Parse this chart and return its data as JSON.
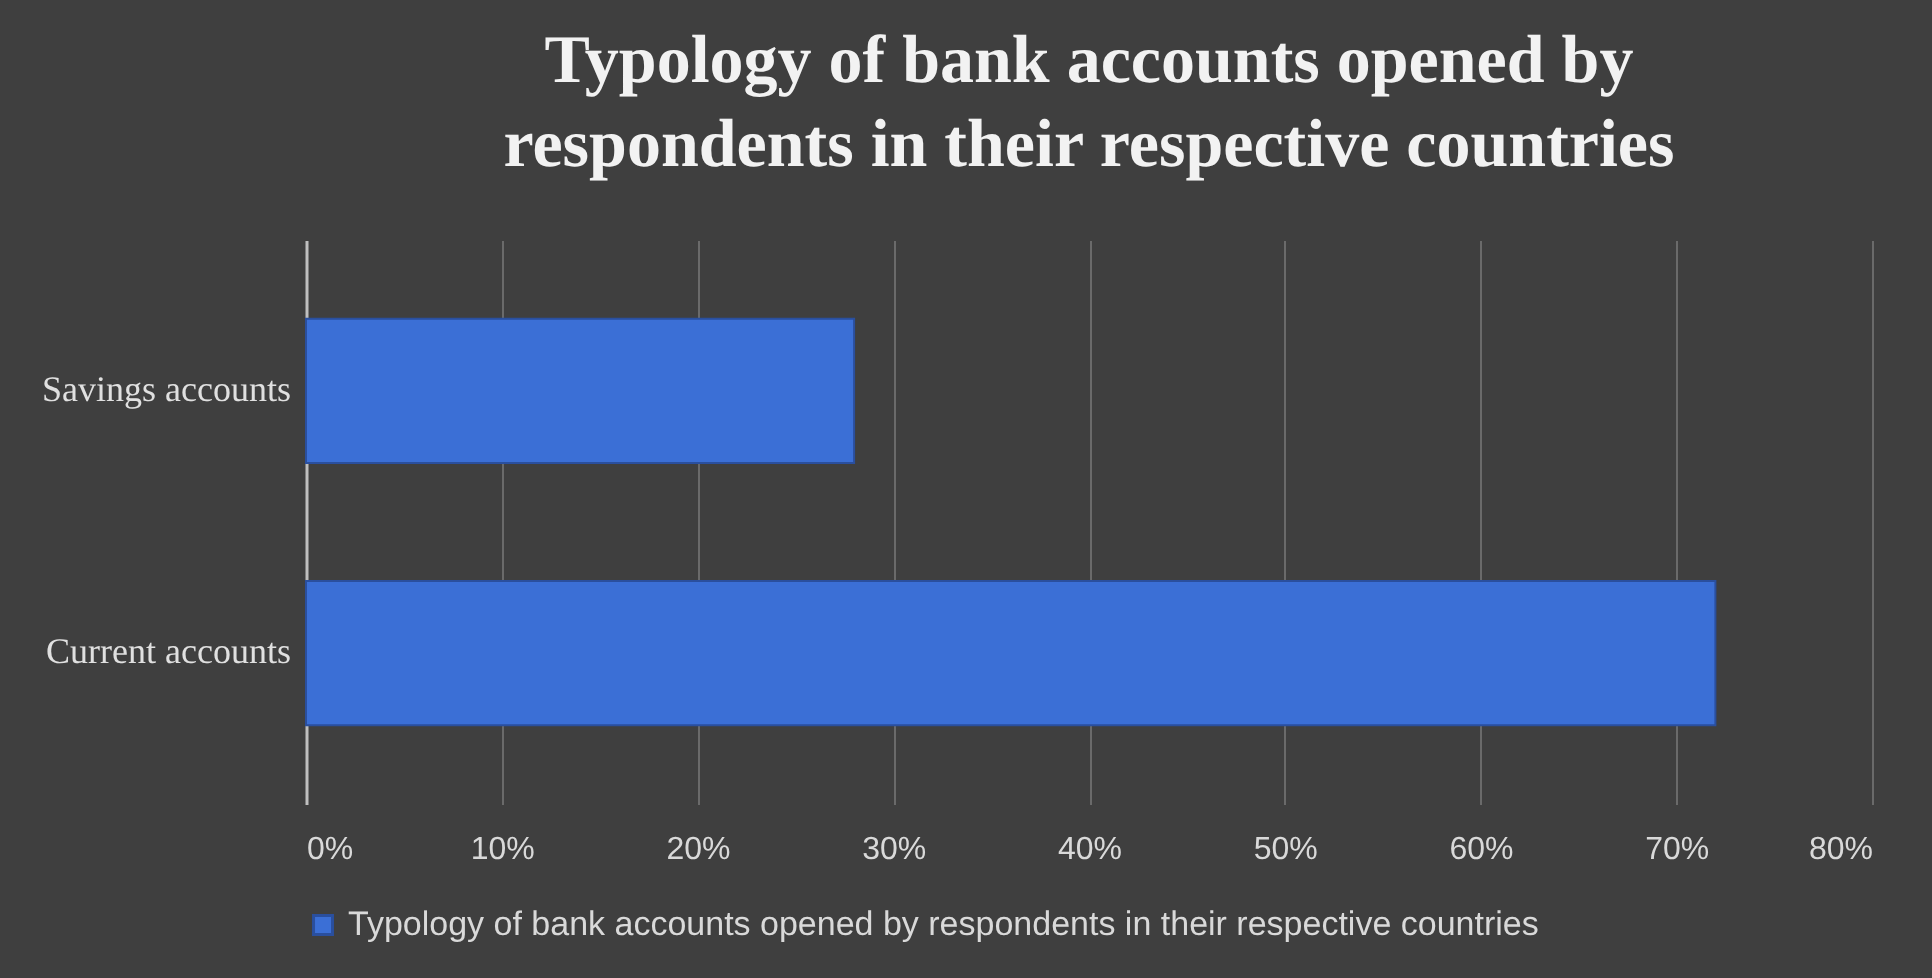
{
  "chart_data": {
    "type": "bar",
    "orientation": "horizontal",
    "title": "Typology of bank accounts opened by respondents in their respective countries",
    "categories": [
      "Savings accounts",
      "Current accounts"
    ],
    "series": [
      {
        "name": "Typology of bank accounts opened by respondents in their respective countries",
        "color": "#3b6fd6",
        "values": [
          28,
          72
        ]
      }
    ],
    "xlim": [
      0,
      80
    ],
    "xticks": [
      {
        "value": 0,
        "label": "0%"
      },
      {
        "value": 10,
        "label": "10%"
      },
      {
        "value": 20,
        "label": "20%"
      },
      {
        "value": 30,
        "label": "30%"
      },
      {
        "value": 40,
        "label": "40%"
      },
      {
        "value": 50,
        "label": "50%"
      },
      {
        "value": 60,
        "label": "60%"
      },
      {
        "value": 70,
        "label": "70%"
      },
      {
        "value": 80,
        "label": "80%"
      }
    ],
    "grid": "x",
    "legend": "bottom"
  }
}
